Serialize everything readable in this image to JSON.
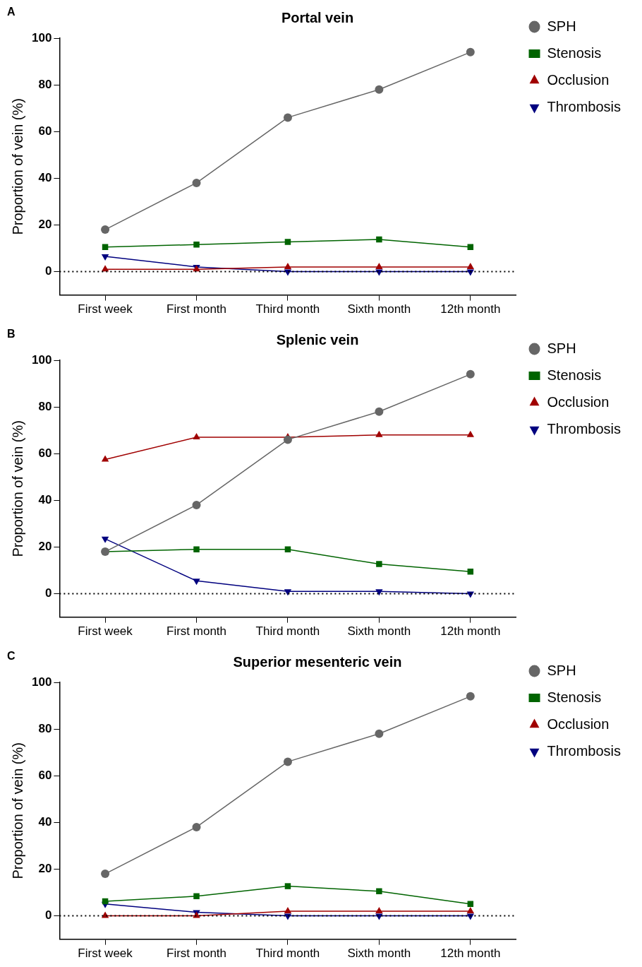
{
  "chart_data": [
    {
      "type": "line",
      "title": "Portal vein",
      "annotations": [
        "A"
      ],
      "ylabel": "Proportion of vein (%)",
      "categories": [
        "First week",
        "First month",
        "Third month",
        "Sixth month",
        "12th month"
      ],
      "ylim": [
        -10,
        100
      ],
      "yticks": [
        0,
        20,
        40,
        60,
        80,
        100
      ],
      "grid": false,
      "legend": "right",
      "line_style": "solid",
      "ref_lines": [
        {
          "axis": "y",
          "value": 0,
          "color": "#000000",
          "line_style": "dotted"
        }
      ],
      "series": [
        {
          "name": "SPH",
          "color": "#666666",
          "marker": "circle",
          "values": [
            18,
            38,
            66,
            78,
            94
          ]
        },
        {
          "name": "Stenosis",
          "color": "#006400",
          "marker": "square",
          "values": [
            10.5,
            11.6,
            12.7,
            13.8,
            10.5
          ]
        },
        {
          "name": "Occlusion",
          "color": "#a00000",
          "marker": "triangle",
          "values": [
            1,
            1,
            2,
            2,
            2
          ]
        },
        {
          "name": "Thrombosis",
          "color": "#00007f",
          "marker": "triangle_down",
          "values": [
            6.5,
            2,
            0,
            0,
            0
          ]
        }
      ]
    },
    {
      "type": "line",
      "title": "Splenic vein",
      "annotations": [
        "B"
      ],
      "ylabel": "Proportion of vein (%)",
      "categories": [
        "First week",
        "First month",
        "Third month",
        "Sixth month",
        "12th month"
      ],
      "ylim": [
        -10,
        100
      ],
      "yticks": [
        0,
        20,
        40,
        60,
        80,
        100
      ],
      "grid": false,
      "legend": "right",
      "line_style": "solid",
      "ref_lines": [
        {
          "axis": "y",
          "value": 0,
          "color": "#000000",
          "line_style": "dotted"
        }
      ],
      "series": [
        {
          "name": "SPH",
          "color": "#666666",
          "marker": "circle",
          "values": [
            18,
            38,
            66,
            78,
            94
          ]
        },
        {
          "name": "Stenosis",
          "color": "#006400",
          "marker": "square",
          "values": [
            18,
            19,
            19,
            12.7,
            9.5
          ]
        },
        {
          "name": "Occlusion",
          "color": "#a00000",
          "marker": "triangle",
          "values": [
            57.5,
            67,
            67,
            68,
            68
          ]
        },
        {
          "name": "Thrombosis",
          "color": "#00007f",
          "marker": "triangle_down",
          "values": [
            23.5,
            5.5,
            1,
            1,
            0
          ]
        }
      ]
    },
    {
      "type": "line",
      "title": "Superior mesenteric vein",
      "annotations": [
        "C"
      ],
      "ylabel": "Proportion of vein (%)",
      "categories": [
        "First week",
        "First month",
        "Third month",
        "Sixth month",
        "12th month"
      ],
      "ylim": [
        -10,
        100
      ],
      "yticks": [
        0,
        20,
        40,
        60,
        80,
        100
      ],
      "grid": false,
      "legend": "right",
      "line_style": "solid",
      "ref_lines": [
        {
          "axis": "y",
          "value": 0,
          "color": "#000000",
          "line_style": "dotted"
        }
      ],
      "series": [
        {
          "name": "SPH",
          "color": "#666666",
          "marker": "circle",
          "values": [
            18,
            38,
            66,
            78,
            94
          ]
        },
        {
          "name": "Stenosis",
          "color": "#006400",
          "marker": "square",
          "values": [
            6.2,
            8.4,
            12.7,
            10.5,
            5.1
          ]
        },
        {
          "name": "Occlusion",
          "color": "#a00000",
          "marker": "triangle",
          "values": [
            0,
            0,
            2,
            2,
            2
          ]
        },
        {
          "name": "Thrombosis",
          "color": "#00007f",
          "marker": "triangle_down",
          "values": [
            5.1,
            1.5,
            0,
            0,
            0
          ]
        }
      ]
    }
  ]
}
